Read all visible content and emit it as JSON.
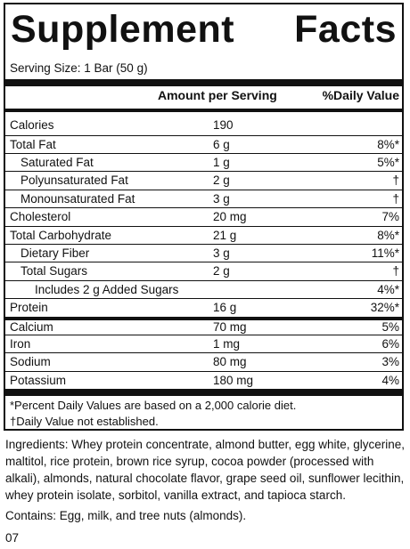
{
  "panel": {
    "title_word1": "Supplement",
    "title_word2": "Facts",
    "serving_size": "Serving Size: 1 Bar (50 g)",
    "header_amount": "Amount per Serving",
    "header_dv": "%Daily Value",
    "rows": [
      {
        "label": "Calories",
        "amount": "190",
        "dv": ""
      },
      {
        "label": "Total Fat",
        "amount": "6 g",
        "dv": "8%*"
      },
      {
        "label": "Saturated Fat",
        "amount": "1 g",
        "dv": "5%*"
      },
      {
        "label": "Polyunsaturated Fat",
        "amount": "2 g",
        "dv": "†"
      },
      {
        "label": "Monounsaturated Fat",
        "amount": "3 g",
        "dv": "†"
      },
      {
        "label": "Cholesterol",
        "amount": "20 mg",
        "dv": "7%"
      },
      {
        "label": "Total Carbohydrate",
        "amount": "21 g",
        "dv": "8%*"
      },
      {
        "label": "Dietary Fiber",
        "amount": "3 g",
        "dv": "11%*"
      },
      {
        "label": "Total Sugars",
        "amount": "2 g",
        "dv": "†"
      },
      {
        "label": "Includes 2 g Added Sugars",
        "amount": "",
        "dv": "4%*"
      },
      {
        "label": "Protein",
        "amount": "16 g",
        "dv": "32%*"
      },
      {
        "label": "Calcium",
        "amount": "70 mg",
        "dv": "5%"
      },
      {
        "label": "Iron",
        "amount": "1 mg",
        "dv": "6%"
      },
      {
        "label": "Sodium",
        "amount": "80 mg",
        "dv": "3%"
      },
      {
        "label": "Potassium",
        "amount": "180 mg",
        "dv": "4%"
      }
    ],
    "footnote1": "*Percent Daily Values are based on a 2,000 calorie diet.",
    "footnote2": "†Daily Value not established."
  },
  "ingredients": "Ingredients: Whey protein concentrate, almond butter, egg white, glycerine, maltitol, rice protein, brown rice syrup, cocoa powder (processed with alkali), almonds, natural chocolate flavor, grape seed oil, sunflower lecithin, whey protein isolate, sorbitol, vanilla extract, and tapioca starch.",
  "contains": "Contains: Egg, milk, and tree nuts (almonds).",
  "code": "07"
}
